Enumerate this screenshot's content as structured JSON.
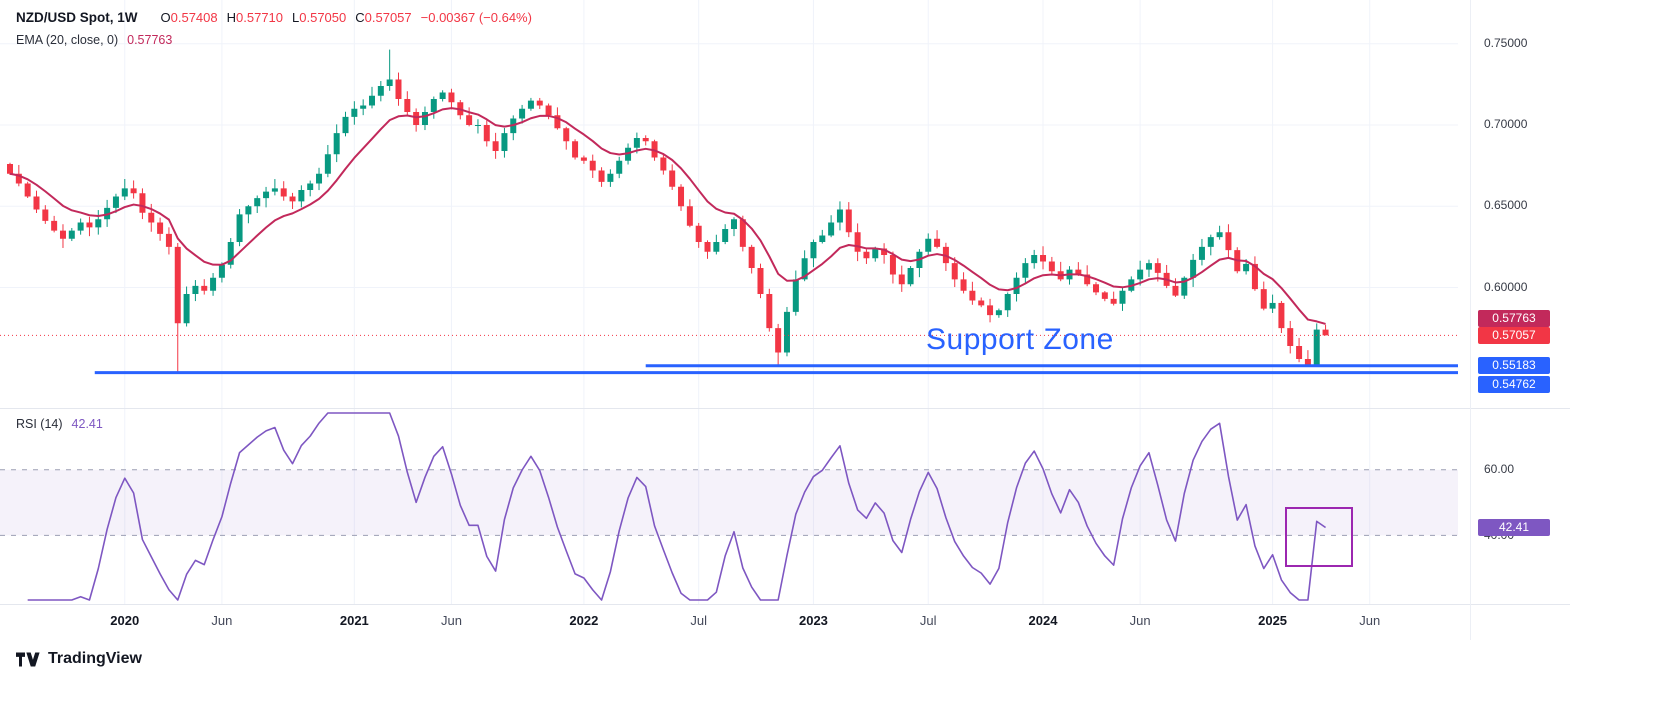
{
  "header": {
    "symbol_title": "NZD/USD Spot, 1W",
    "ohlc": {
      "open_label": "O",
      "open": "0.57408",
      "high_label": "H",
      "high": "0.57710",
      "low_label": "L",
      "low": "0.57050",
      "close_label": "C",
      "close": "0.57057",
      "change": "−0.00367 (−0.64%)"
    },
    "ema_legend": {
      "name": "EMA (20, close, 0)",
      "value": "0.57763"
    }
  },
  "rsi_legend": {
    "name": "RSI (14)",
    "value": "42.41"
  },
  "annotations": {
    "support_zone_label": "Support Zone",
    "rsi_rectangle": true
  },
  "price_axis": {
    "ticks": [
      {
        "label": "0.75000",
        "value": 0.75
      },
      {
        "label": "0.70000",
        "value": 0.7
      },
      {
        "label": "0.65000",
        "value": 0.65
      },
      {
        "label": "0.60000",
        "value": 0.6
      }
    ],
    "badges": [
      {
        "label": "0.57763",
        "kind": "ema"
      },
      {
        "label": "0.57057",
        "kind": "last-price"
      },
      {
        "label": "0.55183",
        "kind": "support-upper"
      },
      {
        "label": "0.54762",
        "kind": "support-lower"
      }
    ]
  },
  "rsi_axis": {
    "ticks": [
      {
        "label": "60.00"
      },
      {
        "label": "40.00"
      }
    ],
    "badge": "42.41"
  },
  "footer": {
    "brand": "TradingView"
  },
  "colors": {
    "up": "#089981",
    "down": "#f23645",
    "ema": "#c2295b",
    "support": "#2962ff",
    "rsi_line": "#7e57c2",
    "rsi_fill": "rgba(126,87,194,0.08)",
    "rsi_band": "#9b9eb4",
    "annotation_rect": "#9c27b0",
    "grid": "#f0f3fa",
    "axis_text": "#363a45",
    "text": "#131722"
  },
  "chart_data": {
    "type": "candlestick",
    "symbol": "NZD/USD Spot",
    "interval": "1W",
    "x_domain": [
      0,
      164
    ],
    "price_range": [
      0.532,
      0.772
    ],
    "y_ticks": [
      0.75,
      0.7,
      0.65,
      0.6
    ],
    "first_open": 0.676,
    "closes": [
      0.67,
      0.664,
      0.656,
      0.648,
      0.641,
      0.635,
      0.63,
      0.635,
      0.64,
      0.637,
      0.642,
      0.649,
      0.656,
      0.661,
      0.658,
      0.646,
      0.64,
      0.633,
      0.625,
      0.578,
      0.596,
      0.601,
      0.598,
      0.606,
      0.614,
      0.628,
      0.645,
      0.65,
      0.655,
      0.659,
      0.661,
      0.656,
      0.653,
      0.66,
      0.664,
      0.67,
      0.682,
      0.695,
      0.705,
      0.71,
      0.712,
      0.718,
      0.724,
      0.728,
      0.716,
      0.708,
      0.7,
      0.708,
      0.716,
      0.72,
      0.714,
      0.706,
      0.7,
      0.7,
      0.69,
      0.684,
      0.695,
      0.704,
      0.71,
      0.715,
      0.712,
      0.706,
      0.698,
      0.69,
      0.68,
      0.678,
      0.672,
      0.665,
      0.67,
      0.678,
      0.686,
      0.692,
      0.69,
      0.68,
      0.672,
      0.662,
      0.65,
      0.638,
      0.628,
      0.622,
      0.628,
      0.636,
      0.642,
      0.625,
      0.612,
      0.596,
      0.575,
      0.56,
      0.585,
      0.605,
      0.618,
      0.628,
      0.632,
      0.64,
      0.648,
      0.634,
      0.622,
      0.618,
      0.624,
      0.62,
      0.608,
      0.602,
      0.612,
      0.622,
      0.63,
      0.625,
      0.615,
      0.605,
      0.598,
      0.592,
      0.589,
      0.583,
      0.586,
      0.596,
      0.606,
      0.615,
      0.62,
      0.616,
      0.61,
      0.605,
      0.611,
      0.608,
      0.602,
      0.597,
      0.593,
      0.59,
      0.598,
      0.605,
      0.611,
      0.615,
      0.609,
      0.601,
      0.595,
      0.606,
      0.617,
      0.625,
      0.631,
      0.634,
      0.623,
      0.61,
      0.6145,
      0.599,
      0.587,
      0.5905,
      0.575,
      0.564,
      0.556,
      0.5525,
      0.5741,
      0.57057
    ],
    "key_wicks": [
      {
        "i": 19,
        "low": 0.547
      },
      {
        "i": 43,
        "high": 0.7464
      },
      {
        "i": 87,
        "low": 0.5512
      },
      {
        "i": 94,
        "high": 0.653
      },
      {
        "i": 137,
        "high": 0.638
      },
      {
        "i": 147,
        "low": 0.5516
      }
    ],
    "last_candle": {
      "open": 0.57408,
      "high": 0.5771,
      "low": 0.5705,
      "close": 0.57057,
      "change": "−0.00367 (−0.64%)"
    },
    "ema": {
      "label": "EMA (20, close, 0)",
      "period": 20,
      "last_value": 0.57763
    },
    "rsi": {
      "label": "RSI (14)",
      "period": 14,
      "last_value": 42.41,
      "upper_band": 60,
      "lower_band": 40
    },
    "levels": {
      "last_price": 0.57057,
      "ema_value": 0.57763,
      "support_upper": 0.55183,
      "support_upper_start_i": 72,
      "support_lower": 0.54762,
      "support_lower_start_i": 9.6
    },
    "x_labels": [
      {
        "text": "2020",
        "i": 13,
        "major": true
      },
      {
        "text": "Jun",
        "i": 24,
        "major": false
      },
      {
        "text": "2021",
        "i": 39,
        "major": true
      },
      {
        "text": "Jun",
        "i": 50,
        "major": false
      },
      {
        "text": "2022",
        "i": 65,
        "major": true
      },
      {
        "text": "Jul",
        "i": 78,
        "major": false
      },
      {
        "text": "2023",
        "i": 91,
        "major": true
      },
      {
        "text": "Jul",
        "i": 104,
        "major": false
      },
      {
        "text": "2024",
        "i": 117,
        "major": true
      },
      {
        "text": "Jun",
        "i": 128,
        "major": false
      },
      {
        "text": "2025",
        "i": 143,
        "major": true
      },
      {
        "text": "Jun",
        "i": 154,
        "major": false
      }
    ]
  }
}
